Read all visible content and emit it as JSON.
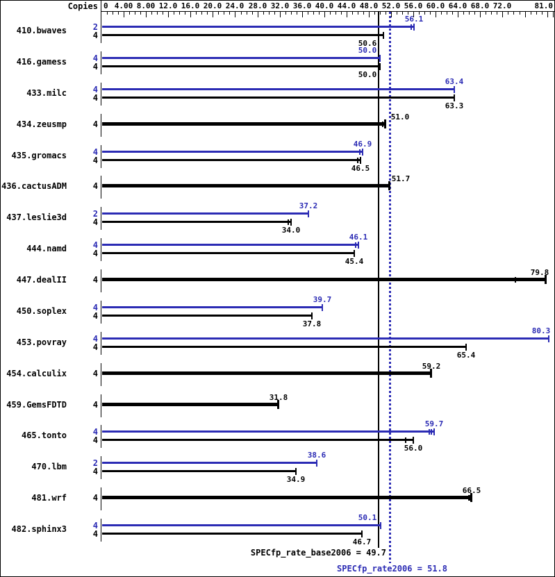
{
  "header": {
    "copies_label": "Copies"
  },
  "colors": {
    "peak_blue": "#2b2bb4",
    "base_black": "#000000",
    "background": "#ffffff"
  },
  "axis": {
    "min": 0,
    "max": 81,
    "minor_step": 1,
    "major_step": 4,
    "ticks": [
      {
        "label": "0",
        "value": 0,
        "align": "left"
      },
      {
        "label": "4.00",
        "value": 4
      },
      {
        "label": "8.00",
        "value": 8
      },
      {
        "label": "12.0",
        "value": 12
      },
      {
        "label": "16.0",
        "value": 16
      },
      {
        "label": "20.0",
        "value": 20
      },
      {
        "label": "24.0",
        "value": 24
      },
      {
        "label": "28.0",
        "value": 28
      },
      {
        "label": "32.0",
        "value": 32
      },
      {
        "label": "36.0",
        "value": 36
      },
      {
        "label": "40.0",
        "value": 40
      },
      {
        "label": "44.0",
        "value": 44
      },
      {
        "label": "48.0",
        "value": 48
      },
      {
        "label": "52.0",
        "value": 52
      },
      {
        "label": "56.0",
        "value": 56
      },
      {
        "label": "60.0",
        "value": 60
      },
      {
        "label": "64.0",
        "value": 64
      },
      {
        "label": "68.0",
        "value": 68
      },
      {
        "label": "72.0",
        "value": 72
      },
      {
        "label": "81.0",
        "value": 81,
        "align": "right"
      }
    ]
  },
  "footer": {
    "base_label": "SPECfp_rate_base2006 = 49.7",
    "peak_label": "SPECfp_rate2006 = 51.8",
    "base_mean": 49.7,
    "peak_mean": 51.8
  },
  "chart_data": {
    "type": "bar",
    "orientation": "horizontal",
    "xlim": [
      0,
      81
    ],
    "series_colors": {
      "peak": "#2b2bb4",
      "base": "#000000"
    },
    "benchmarks": [
      {
        "name": "410.bwaves",
        "bars": [
          {
            "kind": "peak",
            "copies": 2,
            "value": 56.1,
            "run_marks": [
              55.6
            ]
          },
          {
            "kind": "base",
            "copies": 4,
            "value": 50.6,
            "run_marks": []
          }
        ]
      },
      {
        "name": "416.gamess",
        "bars": [
          {
            "kind": "peak",
            "copies": 4,
            "value": 50.0,
            "run_marks": []
          },
          {
            "kind": "base",
            "copies": 4,
            "value": 50.0,
            "run_marks": []
          }
        ]
      },
      {
        "name": "433.milc",
        "bars": [
          {
            "kind": "peak",
            "copies": 4,
            "value": 63.4,
            "run_marks": []
          },
          {
            "kind": "base",
            "copies": 4,
            "value": 63.3,
            "run_marks": []
          }
        ]
      },
      {
        "name": "434.zeusmp",
        "bars": [
          {
            "kind": "base",
            "copies": 4,
            "value": 51.0,
            "run_marks": [
              50.5
            ]
          }
        ]
      },
      {
        "name": "435.gromacs",
        "bars": [
          {
            "kind": "peak",
            "copies": 4,
            "value": 46.9,
            "run_marks": [
              46.4
            ]
          },
          {
            "kind": "base",
            "copies": 4,
            "value": 46.5,
            "run_marks": [
              46.0
            ]
          }
        ]
      },
      {
        "name": "436.cactusADM",
        "bars": [
          {
            "kind": "base",
            "copies": 4,
            "value": 51.7,
            "run_marks": []
          }
        ]
      },
      {
        "name": "437.leslie3d",
        "bars": [
          {
            "kind": "peak",
            "copies": 2,
            "value": 37.2,
            "run_marks": []
          },
          {
            "kind": "base",
            "copies": 4,
            "value": 34.0,
            "run_marks": [
              33.5
            ]
          }
        ]
      },
      {
        "name": "444.namd",
        "bars": [
          {
            "kind": "peak",
            "copies": 4,
            "value": 46.1,
            "run_marks": [
              45.6
            ]
          },
          {
            "kind": "base",
            "copies": 4,
            "value": 45.4,
            "run_marks": []
          }
        ]
      },
      {
        "name": "447.dealII",
        "bars": [
          {
            "kind": "base",
            "copies": 4,
            "value": 79.8,
            "run_marks": [
              74.3
            ]
          }
        ]
      },
      {
        "name": "450.soplex",
        "bars": [
          {
            "kind": "peak",
            "copies": 4,
            "value": 39.7,
            "run_marks": []
          },
          {
            "kind": "base",
            "copies": 4,
            "value": 37.8,
            "run_marks": []
          }
        ]
      },
      {
        "name": "453.povray",
        "bars": [
          {
            "kind": "peak",
            "copies": 4,
            "value": 80.3,
            "run_marks": []
          },
          {
            "kind": "base",
            "copies": 4,
            "value": 65.4,
            "run_marks": []
          }
        ]
      },
      {
        "name": "454.calculix",
        "bars": [
          {
            "kind": "base",
            "copies": 4,
            "value": 59.2,
            "run_marks": []
          }
        ]
      },
      {
        "name": "459.GemsFDTD",
        "bars": [
          {
            "kind": "base",
            "copies": 4,
            "value": 31.8,
            "run_marks": []
          }
        ]
      },
      {
        "name": "465.tonto",
        "bars": [
          {
            "kind": "peak",
            "copies": 4,
            "value": 59.7,
            "run_marks": [
              58.8,
              59.2
            ]
          },
          {
            "kind": "base",
            "copies": 4,
            "value": 56.0,
            "run_marks": [
              54.6
            ]
          }
        ]
      },
      {
        "name": "470.lbm",
        "bars": [
          {
            "kind": "peak",
            "copies": 2,
            "value": 38.6,
            "run_marks": []
          },
          {
            "kind": "base",
            "copies": 4,
            "value": 34.9,
            "run_marks": []
          }
        ]
      },
      {
        "name": "481.wrf",
        "bars": [
          {
            "kind": "base",
            "copies": 4,
            "value": 66.5,
            "run_marks": [
              66.0,
              66.2
            ]
          }
        ]
      },
      {
        "name": "482.sphinx3",
        "bars": [
          {
            "kind": "peak",
            "copies": 4,
            "value": 50.1,
            "run_marks": []
          },
          {
            "kind": "base",
            "copies": 4,
            "value": 46.7,
            "run_marks": []
          }
        ]
      }
    ]
  }
}
